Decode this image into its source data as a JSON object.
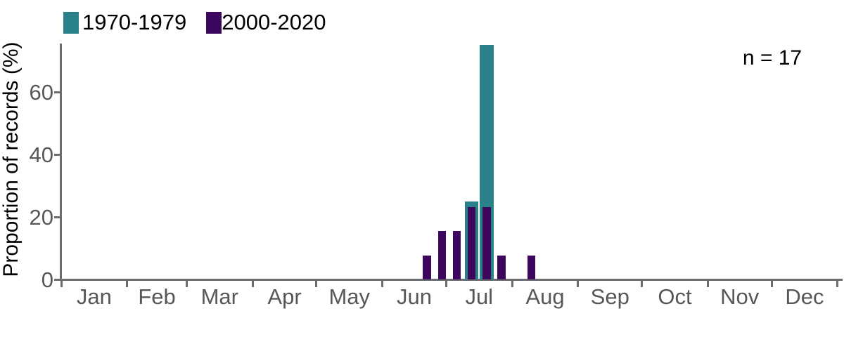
{
  "colors": {
    "teal": "#2a818a",
    "purple": "#3e075e",
    "axis": "#6a6e70",
    "tick_label": "#54585a",
    "text": "#000000",
    "background": "#ffffff"
  },
  "chart_data": {
    "type": "bar",
    "title": "",
    "xlabel": "",
    "ylabel": "Proportion of records (%)",
    "annotation": "n = 17",
    "grid": false,
    "legend_position": "top-left",
    "ylim": [
      0,
      75
    ],
    "yticks": [
      0,
      20,
      40,
      60
    ],
    "month_labels": [
      "Jan",
      "Feb",
      "Mar",
      "Apr",
      "May",
      "Jun",
      "Jul",
      "Aug",
      "Sep",
      "Oct",
      "Nov",
      "Dec"
    ],
    "x_axis_unit": "day_of_year",
    "series": [
      {
        "name": "1970-1979",
        "color": "#2a818a",
        "bar_width_days": 6.4,
        "points": [
          {
            "day_of_year": 193,
            "value_pct": 25.0
          },
          {
            "day_of_year": 200,
            "value_pct": 75.0
          }
        ]
      },
      {
        "name": "2000-2020",
        "color": "#3e075e",
        "bar_width_days": 3.8,
        "points": [
          {
            "day_of_year": 172,
            "value_pct": 7.7
          },
          {
            "day_of_year": 179,
            "value_pct": 15.4
          },
          {
            "day_of_year": 186,
            "value_pct": 15.4
          },
          {
            "day_of_year": 193,
            "value_pct": 23.1
          },
          {
            "day_of_year": 200,
            "value_pct": 23.1
          },
          {
            "day_of_year": 207,
            "value_pct": 7.7
          },
          {
            "day_of_year": 221,
            "value_pct": 7.7
          }
        ]
      }
    ]
  }
}
